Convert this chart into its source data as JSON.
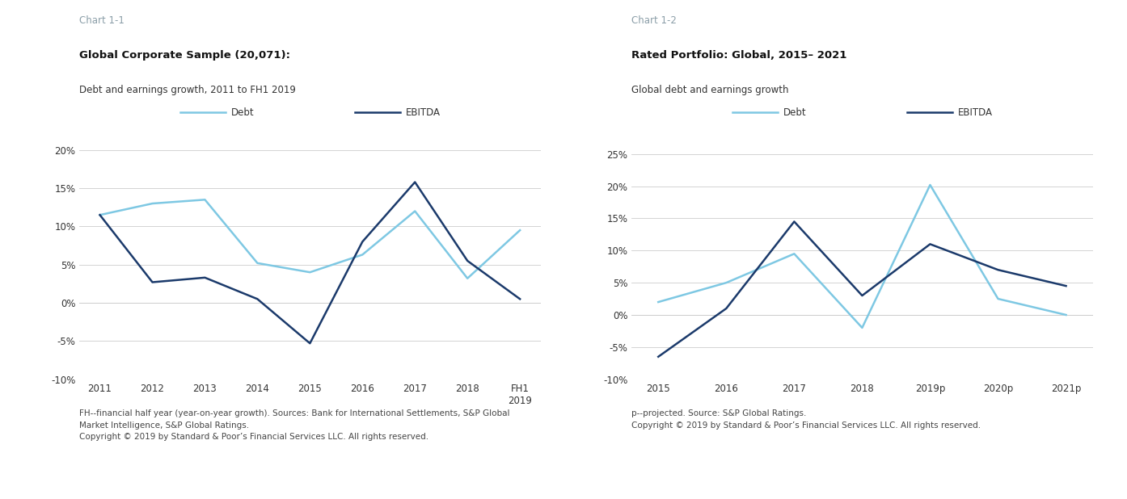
{
  "chart1": {
    "title": "Chart 1-1",
    "bold_title": "Global Corporate Sample (20,071):",
    "subtitle": "Debt and earnings growth, 2011 to FH1 2019",
    "x_labels": [
      "2011",
      "2012",
      "2013",
      "2014",
      "2015",
      "2016",
      "2017",
      "2018",
      "FH1\n2019"
    ],
    "debt_values": [
      11.5,
      13.0,
      13.5,
      5.2,
      4.0,
      6.3,
      12.0,
      3.2,
      9.5
    ],
    "ebitda_values": [
      11.5,
      2.7,
      3.3,
      0.5,
      -5.3,
      8.0,
      15.8,
      5.5,
      0.5
    ],
    "ylim": [
      -10,
      22
    ],
    "yticks": [
      -10,
      -5,
      0,
      5,
      10,
      15,
      20
    ],
    "footnote": "FH--financial half year (year-on-year growth). Sources: Bank for International Settlements, S&P Global\nMarket Intelligence, S&P Global Ratings.\nCopyright © 2019 by Standard & Poor’s Financial Services LLC. All rights reserved."
  },
  "chart2": {
    "title": "Chart 1-2",
    "bold_title": "Rated Portfolio: Global, 2015– 2021",
    "subtitle": "Global debt and earnings growth",
    "x_labels": [
      "2015",
      "2016",
      "2017",
      "2018",
      "2019p",
      "2020p",
      "2021p"
    ],
    "debt_values": [
      2.0,
      5.0,
      9.5,
      -2.0,
      20.2,
      2.5,
      0.0
    ],
    "ebitda_values": [
      -6.5,
      1.0,
      14.5,
      3.0,
      11.0,
      7.0,
      4.5
    ],
    "ylim": [
      -10,
      28
    ],
    "yticks": [
      -10,
      -5,
      0,
      5,
      10,
      15,
      20,
      25
    ],
    "footnote": "p--projected. Source: S&P Global Ratings.\nCopyright © 2019 by Standard & Poor’s Financial Services LLC. All rights reserved."
  },
  "debt_color": "#7EC8E3",
  "ebitda_color": "#1B3A6B",
  "title_color": "#8B9EA8",
  "background_color": "#FFFFFF",
  "grid_color": "#CCCCCC",
  "tick_fontsize": 8.5,
  "chart_title_fontsize": 8.5,
  "bold_title_fontsize": 9.5,
  "subtitle_fontsize": 8.5,
  "footnote_fontsize": 7.5,
  "legend_fontsize": 8.5,
  "line_width": 1.8
}
